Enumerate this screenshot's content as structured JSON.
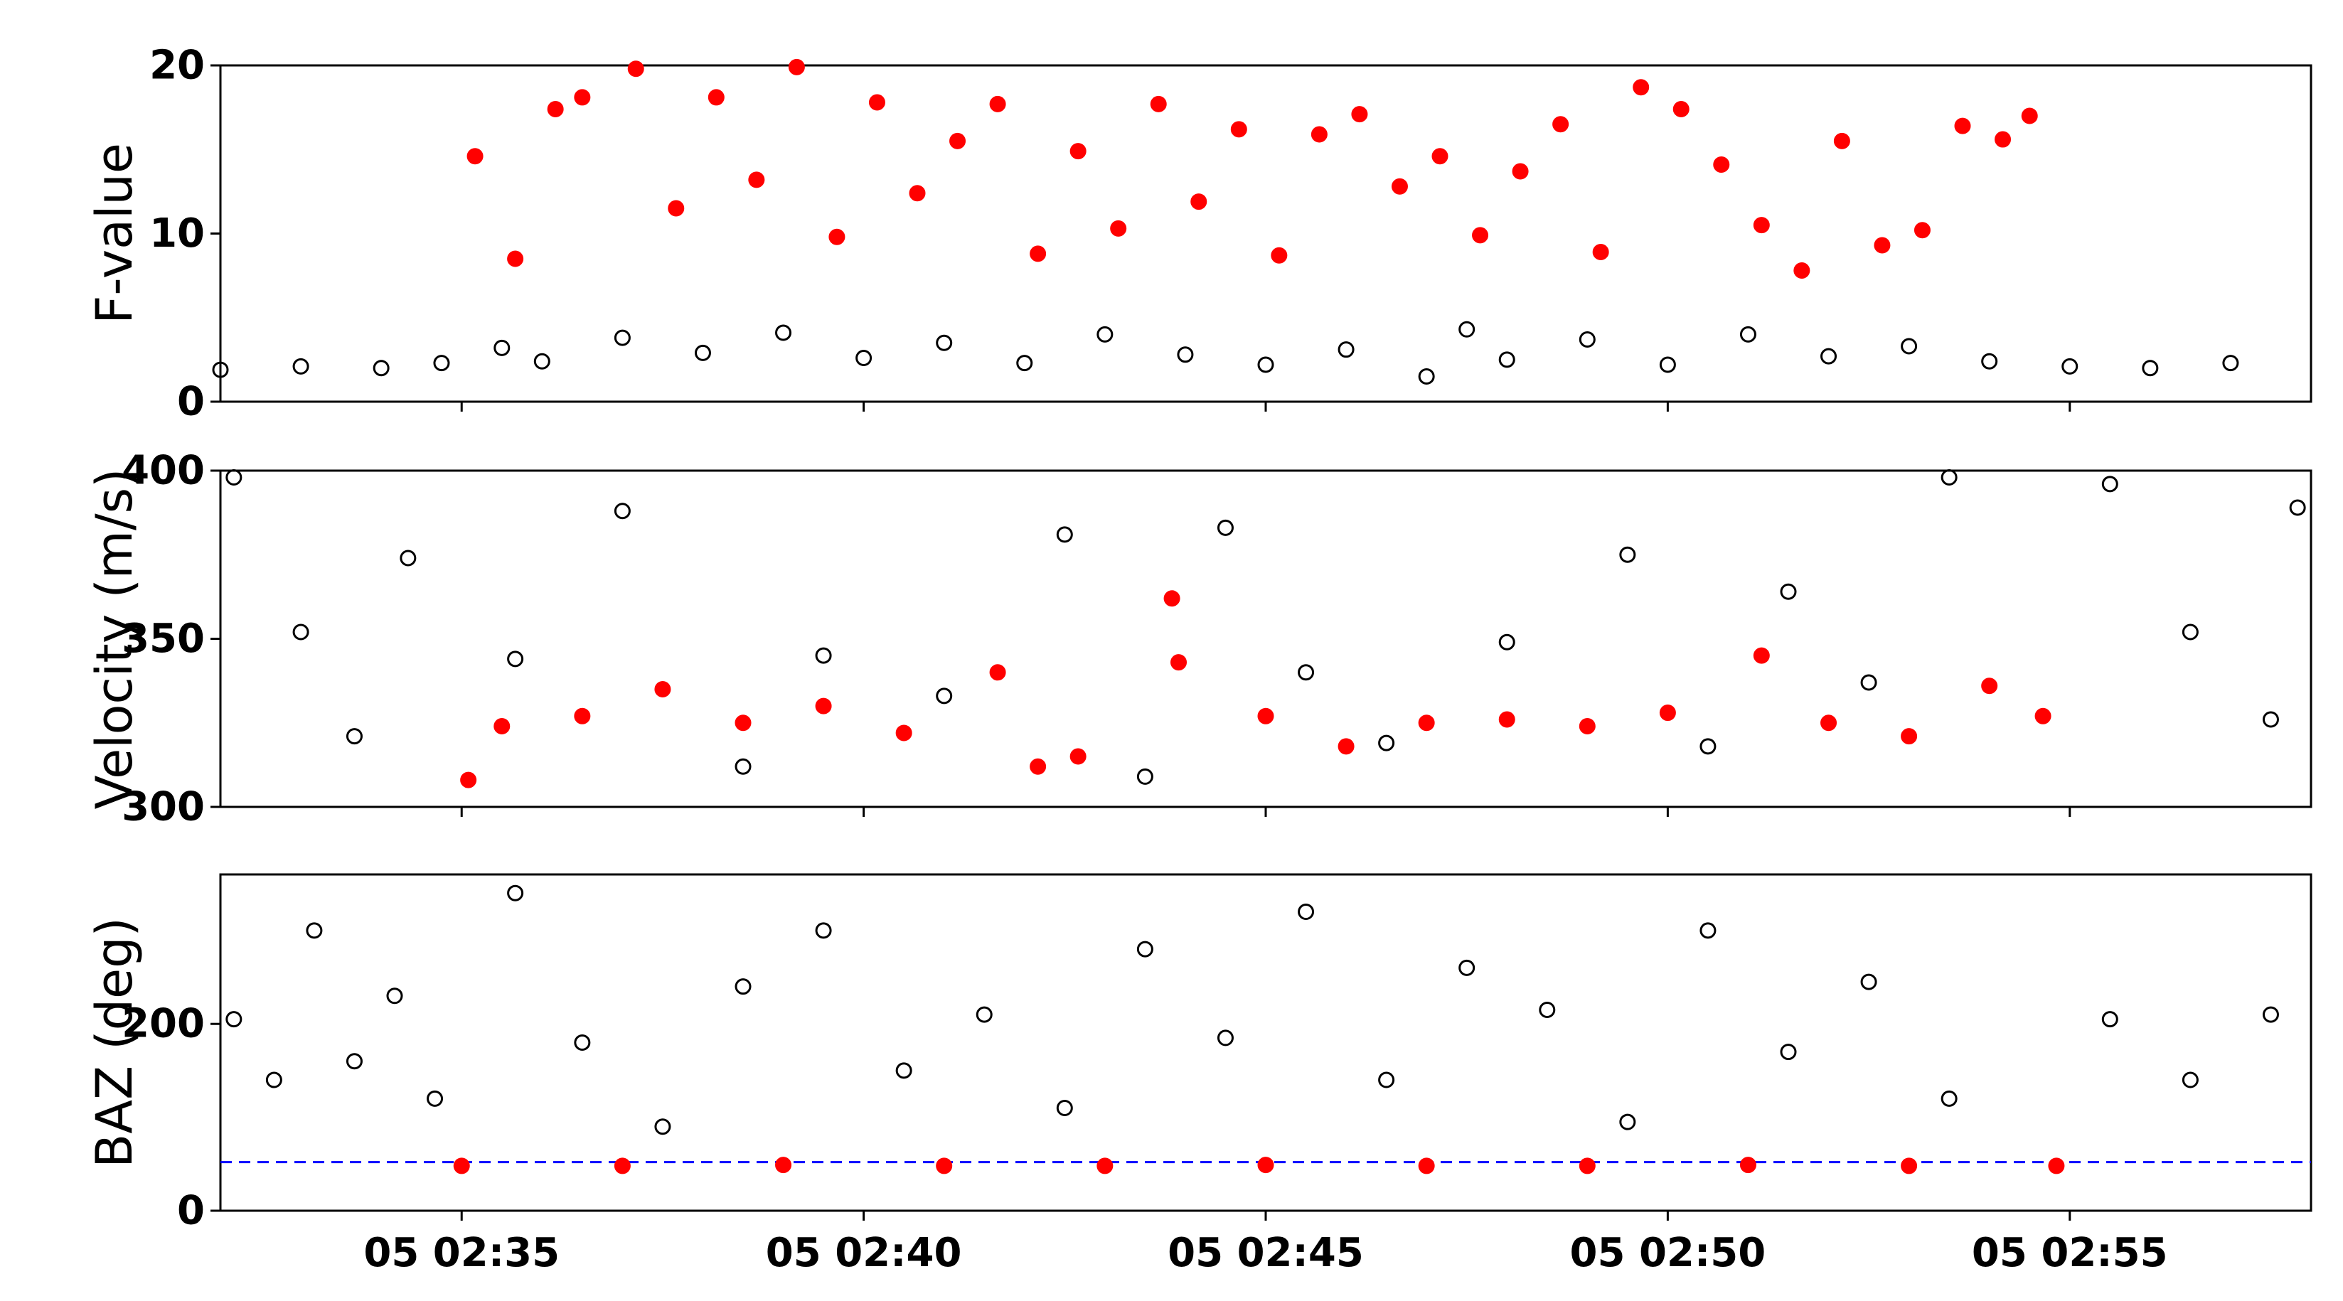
{
  "chart_data": [
    {
      "type": "scatter",
      "title": "",
      "ylabel": "F-value",
      "xlabel": "",
      "xlim": [
        "02:32:00",
        "02:58:00"
      ],
      "ylim": [
        0,
        20
      ],
      "yticks": [
        0,
        10,
        20
      ],
      "grid": false,
      "series": [
        {
          "marker": "hollow-circle",
          "color": "#000000",
          "points": [
            [
              "02:32:00",
              1.9
            ],
            [
              "02:33:00",
              2.1
            ],
            [
              "02:34:00",
              2.0
            ],
            [
              "02:34:45",
              2.3
            ],
            [
              "02:35:30",
              3.2
            ],
            [
              "02:36:00",
              2.4
            ],
            [
              "02:37:00",
              3.8
            ],
            [
              "02:38:00",
              2.9
            ],
            [
              "02:39:00",
              4.1
            ],
            [
              "02:40:00",
              2.6
            ],
            [
              "02:41:00",
              3.5
            ],
            [
              "02:42:00",
              2.3
            ],
            [
              "02:43:00",
              4.0
            ],
            [
              "02:44:00",
              2.8
            ],
            [
              "02:45:00",
              2.2
            ],
            [
              "02:46:00",
              3.1
            ],
            [
              "02:47:00",
              1.5
            ],
            [
              "02:47:30",
              4.3
            ],
            [
              "02:48:00",
              2.5
            ],
            [
              "02:49:00",
              3.7
            ],
            [
              "02:50:00",
              2.2
            ],
            [
              "02:51:00",
              4.0
            ],
            [
              "02:52:00",
              2.7
            ],
            [
              "02:53:00",
              3.3
            ],
            [
              "02:54:00",
              2.4
            ],
            [
              "02:55:00",
              2.1
            ],
            [
              "02:56:00",
              2.0
            ],
            [
              "02:57:00",
              2.3
            ]
          ]
        },
        {
          "marker": "filled-circle",
          "color": "#ff0000",
          "points": [
            [
              "02:35:10",
              14.6
            ],
            [
              "02:35:40",
              8.5
            ],
            [
              "02:36:10",
              17.4
            ],
            [
              "02:36:30",
              18.1
            ],
            [
              "02:37:10",
              19.8
            ],
            [
              "02:37:40",
              11.5
            ],
            [
              "02:38:10",
              18.1
            ],
            [
              "02:38:40",
              13.2
            ],
            [
              "02:39:10",
              19.9
            ],
            [
              "02:39:40",
              9.8
            ],
            [
              "02:40:10",
              17.8
            ],
            [
              "02:40:40",
              12.4
            ],
            [
              "02:41:10",
              15.5
            ],
            [
              "02:41:40",
              17.7
            ],
            [
              "02:42:10",
              8.8
            ],
            [
              "02:42:40",
              14.9
            ],
            [
              "02:43:10",
              10.3
            ],
            [
              "02:43:40",
              17.7
            ],
            [
              "02:44:10",
              11.9
            ],
            [
              "02:44:40",
              16.2
            ],
            [
              "02:45:10",
              8.7
            ],
            [
              "02:45:40",
              15.9
            ],
            [
              "02:46:10",
              17.1
            ],
            [
              "02:46:40",
              12.8
            ],
            [
              "02:47:10",
              14.6
            ],
            [
              "02:47:40",
              9.9
            ],
            [
              "02:48:10",
              13.7
            ],
            [
              "02:48:40",
              16.5
            ],
            [
              "02:49:10",
              8.9
            ],
            [
              "02:49:40",
              18.7
            ],
            [
              "02:50:10",
              17.4
            ],
            [
              "02:50:40",
              14.1
            ],
            [
              "02:51:10",
              10.5
            ],
            [
              "02:51:40",
              7.8
            ],
            [
              "02:52:10",
              15.5
            ],
            [
              "02:52:40",
              9.3
            ],
            [
              "02:53:10",
              10.2
            ],
            [
              "02:53:40",
              16.4
            ],
            [
              "02:54:10",
              15.6
            ],
            [
              "02:54:30",
              17.0
            ]
          ]
        }
      ]
    },
    {
      "type": "scatter",
      "title": "",
      "ylabel": "Velocity (m/s)",
      "xlabel": "",
      "xlim": [
        "02:32:00",
        "02:58:00"
      ],
      "ylim": [
        300,
        400
      ],
      "yticks": [
        300,
        350,
        400
      ],
      "grid": false,
      "series": [
        {
          "marker": "hollow-circle",
          "color": "#000000",
          "points": [
            [
              "02:32:10",
              398
            ],
            [
              "02:33:00",
              352
            ],
            [
              "02:33:40",
              321
            ],
            [
              "02:34:20",
              374
            ],
            [
              "02:35:40",
              344
            ],
            [
              "02:37:00",
              388
            ],
            [
              "02:38:30",
              312
            ],
            [
              "02:39:30",
              345
            ],
            [
              "02:41:00",
              333
            ],
            [
              "02:42:30",
              381
            ],
            [
              "02:43:30",
              309
            ],
            [
              "02:44:30",
              383
            ],
            [
              "02:45:30",
              340
            ],
            [
              "02:46:30",
              319
            ],
            [
              "02:48:00",
              349
            ],
            [
              "02:49:30",
              375
            ],
            [
              "02:50:30",
              318
            ],
            [
              "02:51:30",
              364
            ],
            [
              "02:52:30",
              337
            ],
            [
              "02:53:30",
              398
            ],
            [
              "02:55:30",
              396
            ],
            [
              "02:56:30",
              352
            ],
            [
              "02:57:30",
              326
            ],
            [
              "02:57:50",
              389
            ]
          ]
        },
        {
          "marker": "filled-circle",
          "color": "#ff0000",
          "points": [
            [
              "02:35:05",
              308
            ],
            [
              "02:35:30",
              324
            ],
            [
              "02:36:30",
              327
            ],
            [
              "02:37:30",
              335
            ],
            [
              "02:38:30",
              325
            ],
            [
              "02:39:30",
              330
            ],
            [
              "02:40:30",
              322
            ],
            [
              "02:41:40",
              340
            ],
            [
              "02:42:10",
              312
            ],
            [
              "02:42:40",
              315
            ],
            [
              "02:43:50",
              362
            ],
            [
              "02:43:55",
              343
            ],
            [
              "02:45:00",
              327
            ],
            [
              "02:46:00",
              318
            ],
            [
              "02:47:00",
              325
            ],
            [
              "02:48:00",
              326
            ],
            [
              "02:49:00",
              324
            ],
            [
              "02:50:00",
              328
            ],
            [
              "02:51:10",
              345
            ],
            [
              "02:52:00",
              325
            ],
            [
              "02:53:00",
              321
            ],
            [
              "02:54:00",
              336
            ],
            [
              "02:54:40",
              327
            ]
          ]
        }
      ]
    },
    {
      "type": "scatter",
      "title": "",
      "ylabel": "BAZ (deg)",
      "xlabel": "",
      "xlim": [
        "02:32:00",
        "02:58:00"
      ],
      "ylim": [
        0,
        360
      ],
      "yticks": [
        0,
        200
      ],
      "xticks": [
        "05 02:35",
        "05 02:40",
        "05 02:45",
        "05 02:50",
        "05 02:55"
      ],
      "grid": false,
      "reference_line": {
        "value": 52,
        "color": "#0000ff",
        "style": "dashed"
      },
      "series": [
        {
          "marker": "hollow-circle",
          "color": "#000000",
          "points": [
            [
              "02:32:10",
              205
            ],
            [
              "02:32:40",
              140
            ],
            [
              "02:33:10",
              300
            ],
            [
              "02:33:40",
              160
            ],
            [
              "02:34:10",
              230
            ],
            [
              "02:34:40",
              120
            ],
            [
              "02:35:40",
              340
            ],
            [
              "02:36:30",
              180
            ],
            [
              "02:37:30",
              90
            ],
            [
              "02:38:30",
              240
            ],
            [
              "02:39:30",
              300
            ],
            [
              "02:40:30",
              150
            ],
            [
              "02:41:30",
              210
            ],
            [
              "02:42:30",
              110
            ],
            [
              "02:43:30",
              280
            ],
            [
              "02:44:30",
              185
            ],
            [
              "02:45:30",
              320
            ],
            [
              "02:46:30",
              140
            ],
            [
              "02:47:30",
              260
            ],
            [
              "02:48:30",
              215
            ],
            [
              "02:49:30",
              95
            ],
            [
              "02:50:30",
              300
            ],
            [
              "02:51:30",
              170
            ],
            [
              "02:52:30",
              245
            ],
            [
              "02:53:30",
              120
            ],
            [
              "02:55:30",
              205
            ],
            [
              "02:56:30",
              140
            ],
            [
              "02:57:30",
              210
            ]
          ]
        },
        {
          "marker": "filled-circle",
          "color": "#ff0000",
          "points": [
            [
              "02:35:00",
              48
            ],
            [
              "02:37:00",
              48
            ],
            [
              "02:39:00",
              49
            ],
            [
              "02:41:00",
              48
            ],
            [
              "02:43:00",
              48
            ],
            [
              "02:45:00",
              49
            ],
            [
              "02:47:00",
              48
            ],
            [
              "02:49:00",
              48
            ],
            [
              "02:51:00",
              49
            ],
            [
              "02:53:00",
              48
            ],
            [
              "02:54:50",
              48
            ]
          ]
        }
      ]
    }
  ]
}
